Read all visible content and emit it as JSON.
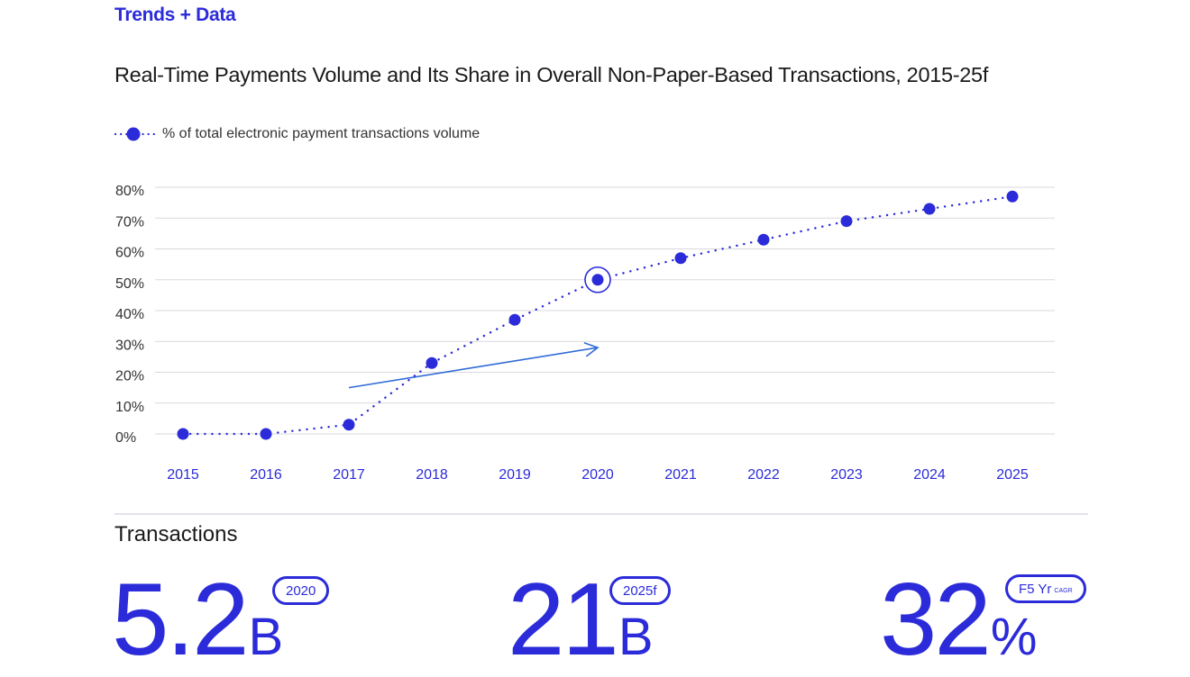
{
  "header": {
    "section_tag": "Trends + Data"
  },
  "chart_data": {
    "type": "line",
    "title": "Real-Time Payments Volume and Its Share in Overall Non-Paper-Based Transactions, 2015-25f",
    "x": [
      "2015",
      "2016",
      "2017",
      "2018",
      "2019",
      "2020",
      "2021",
      "2022",
      "2023",
      "2024",
      "2025"
    ],
    "y_ticks": [
      "0%",
      "10%",
      "20%",
      "30%",
      "40%",
      "50%",
      "60%",
      "70%",
      "80%"
    ],
    "ylim": [
      0,
      80
    ],
    "series": [
      {
        "name": "% of total electronic payment transactions volume",
        "values": [
          0,
          0,
          3,
          23,
          37,
          50,
          57,
          63,
          69,
          73,
          77
        ]
      }
    ],
    "highlight_category": "2020",
    "trend_arrow": {
      "from": [
        "2017",
        15
      ],
      "to": [
        "2020",
        28
      ]
    },
    "legend_position": "top-left",
    "grid": true,
    "colors": {
      "series": "#2b2bd9",
      "arrow": "#2f6bd6",
      "grid": "#d9d9df",
      "tick_label": "#333333",
      "x_label": "#2b2bd9"
    }
  },
  "stats": {
    "title": "Transactions",
    "items": [
      {
        "value": "5.2",
        "unit": "B",
        "badge": "2020",
        "badge_sub": ""
      },
      {
        "value": "21",
        "unit": "B",
        "badge": "2025f",
        "badge_sub": ""
      },
      {
        "value": "32",
        "unit": "%",
        "badge": "F5 Yr",
        "badge_sub": "CAGR"
      }
    ]
  }
}
